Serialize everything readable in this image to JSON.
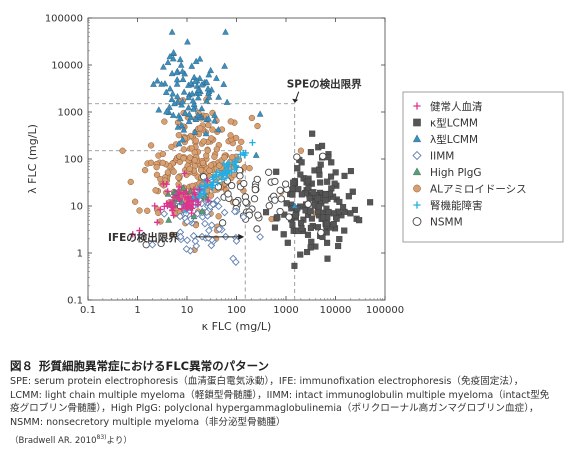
{
  "chart_data": {
    "type": "scatter",
    "xlabel": "κ FLC (mg/L)",
    "ylabel": "λ FLC (mg/L)",
    "x_scale": "log",
    "y_scale": "log",
    "xlim": [
      0.1,
      100000
    ],
    "ylim": [
      0.1,
      100000
    ],
    "x_ticks": [
      "0.1",
      "1",
      "10",
      "100",
      "1000",
      "10000",
      "100000"
    ],
    "y_ticks": [
      "0.1",
      "1",
      "10",
      "100",
      "1000",
      "10000",
      "100000"
    ],
    "limits": [
      {
        "label": "SPEの検出限界",
        "x": 1500,
        "y": 1500
      },
      {
        "label": "IFEの検出限界",
        "x": 150,
        "y": 150
      }
    ],
    "legend_position": "right",
    "series": [
      {
        "name": "健常人血清",
        "marker": "plus",
        "color": "#e0338f",
        "center": [
          8,
          14
        ],
        "spread": [
          0.22,
          0.2
        ],
        "count": 55,
        "seed": 11,
        "extra": [
          [
            0.8,
            2.5
          ],
          [
            1.1,
            3
          ],
          [
            2.5,
            4.5
          ]
        ]
      },
      {
        "name": "κ型LCMM",
        "marker": "square",
        "color": "#555555",
        "center": [
          3500,
          10
        ],
        "spread": [
          0.35,
          0.5
        ],
        "count": 150,
        "seed": 23,
        "extra": [
          [
            20000,
            7
          ],
          [
            30000,
            5
          ],
          [
            50000,
            12
          ],
          [
            900,
            2.5
          ],
          [
            15000,
            3
          ]
        ]
      },
      {
        "name": "λ型LCMM",
        "marker": "triangle",
        "color": "#3a8fbf",
        "center": [
          12,
          2500
        ],
        "spread": [
          0.32,
          0.45
        ],
        "count": 100,
        "seed": 37,
        "extra": [
          [
            5,
            50000
          ],
          [
            60,
            50000
          ],
          [
            300,
            900
          ],
          [
            1500,
            10
          ],
          [
            250,
            120
          ]
        ]
      },
      {
        "name": "IIMM",
        "marker": "diamond",
        "color": "#6080b0",
        "center": [
          30,
          5
        ],
        "spread": [
          0.4,
          0.35
        ],
        "count": 60,
        "seed": 41,
        "extra": [
          [
            2,
            1.5
          ],
          [
            100,
            1.8
          ],
          [
            300,
            2.2
          ]
        ]
      },
      {
        "name": "High PlgG",
        "marker": "triangle",
        "color": "#5aa06a",
        "center": [
          9,
          15
        ],
        "spread": [
          0.25,
          0.2
        ],
        "count": 20,
        "seed": 53,
        "extra": []
      },
      {
        "name": "ALアミロイドーシス",
        "marker": "circle",
        "color": "#d8a070",
        "center": [
          15,
          50
        ],
        "spread": [
          0.45,
          0.6
        ],
        "count": 260,
        "seed": 67,
        "extra": [
          [
            0.5,
            150
          ],
          [
            1.1,
            8
          ],
          [
            1500,
            30
          ],
          [
            4000,
            7
          ],
          [
            2000,
            150
          ],
          [
            800,
            20
          ]
        ]
      },
      {
        "name": "腎機能障害",
        "marker": "plus",
        "color": "#22aee5",
        "center": [
          40,
          40
        ],
        "spread": [
          0.35,
          0.3
        ],
        "count": 60,
        "seed": 79,
        "extra": []
      },
      {
        "name": "NSMM",
        "marker": "circle_open",
        "color": "#444444",
        "center": [
          250,
          15
        ],
        "spread": [
          0.55,
          0.35
        ],
        "count": 55,
        "seed": 83,
        "extra": [
          [
            1.5,
            1.5
          ],
          [
            3,
            1.6
          ]
        ]
      }
    ]
  },
  "figure": {
    "number": "図８",
    "title": "形質細胞異常症におけるFLC異常のパターン"
  },
  "caption": {
    "lines": [
      "SPE: serum protein electrophoresis（血清蛋白電気泳動），IFE: immunofixation electrophoresis（免疫固定法），",
      "LCMM: light chain multiple myeloma（軽鎖型骨髄腫），IIMM: intact immunoglobulin multiple myeloma（intact型免",
      "疫グロブリン骨髄腫），High PlgG: polyclonal hypergammaglobulinemia（ポリクローナル高ガンマグロブリン血症），",
      "NSMM: nonsecretory multiple myeloma（非分泌型骨髄腫）"
    ],
    "citation": "（Bradwell AR. 2010",
    "citation_ref": "83)",
    "citation_tail": "より）"
  }
}
